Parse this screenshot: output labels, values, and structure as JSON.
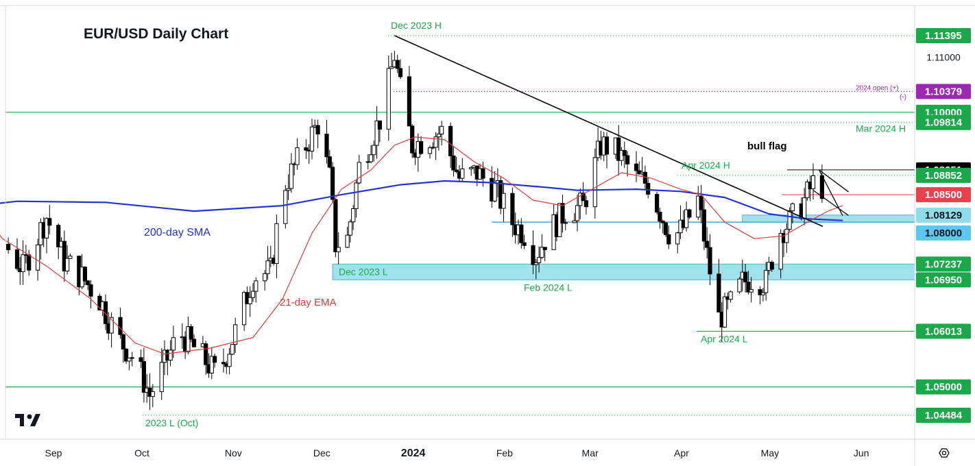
{
  "title": "EUR/USD Daily Chart",
  "colors": {
    "up": "#ffffff",
    "down": "#000000",
    "green": "#1aa84a",
    "zone_fill": "#8fdde8",
    "zone_stroke": "#4fb6d6",
    "sma": "#2233d6",
    "ema": "#e03a3a",
    "purple": "#9c27b0",
    "trend": "#000000",
    "axis_text": "#131722"
  },
  "chart_data": {
    "type": "candlestick",
    "title": "EUR/USD Daily Chart",
    "ylim": [
      1.0415,
      1.1185
    ],
    "x_ticks": [
      {
        "label": "Sep",
        "day": 0
      },
      {
        "label": "Oct",
        "day": 30
      },
      {
        "label": "Nov",
        "day": 61
      },
      {
        "label": "Dec",
        "day": 91
      },
      {
        "label": "2024",
        "day": 122
      },
      {
        "label": "Feb",
        "day": 153
      },
      {
        "label": "Mar",
        "day": 182
      },
      {
        "label": "Apr",
        "day": 213
      },
      {
        "label": "May",
        "day": 243
      },
      {
        "label": "Jun",
        "day": 274
      }
    ],
    "price_scale_labels": [
      "1.11000"
    ],
    "levels": [
      {
        "price": 1.11395,
        "label": "1.11395",
        "style": "dotted",
        "tag_fill": "#1aa84a",
        "tag_text": "#ffffff",
        "annotation": "Dec 2023 H"
      },
      {
        "price": 1.10379,
        "label": "1.10379",
        "style": "dotted-purple",
        "tag_fill": "#9c27b0",
        "tag_text": "#ffffff",
        "annotation": "2024 open (+)"
      },
      {
        "price": 1.1,
        "label": "1.10000",
        "style": "solid",
        "tag_fill": "#1aa84a",
        "tag_text": "#ffffff",
        "annotation": ""
      },
      {
        "price": 1.09814,
        "label": "1.09814",
        "style": "dotted",
        "tag_fill": "#1aa84a",
        "tag_text": "#ffffff",
        "annotation": "Mar 2024 H"
      },
      {
        "price": 1.08951,
        "label": "1.08951",
        "style": "none",
        "tag_fill": "#000000",
        "tag_text": "#ffffff",
        "annotation": ""
      },
      {
        "price": 1.08852,
        "label": "1.08852",
        "style": "dotted",
        "tag_fill": "#1aa84a",
        "tag_text": "#ffffff",
        "annotation": "Apr 2024 H"
      },
      {
        "price": 1.085,
        "label": "1.08500",
        "style": "solid-red",
        "tag_fill": "#e8414e",
        "tag_text": "#ffffff",
        "annotation": ""
      },
      {
        "price": 1.08129,
        "label": "1.08129",
        "style": "zone",
        "tag_fill": "#8fdde8",
        "tag_text": "#131722",
        "annotation": ""
      },
      {
        "price": 1.08,
        "label": "1.08000",
        "style": "zone",
        "tag_fill": "#5fc6ef",
        "tag_text": "#131722",
        "annotation": ""
      },
      {
        "price": 1.07237,
        "label": "1.07237",
        "style": "zone",
        "tag_fill": "#1aa84a",
        "tag_text": "#ffffff",
        "annotation": "Dec 2023 L"
      },
      {
        "price": 1.0695,
        "label": "1.06950",
        "style": "zone",
        "tag_fill": "#1aa84a",
        "tag_text": "#ffffff",
        "annotation": "Feb 2024 L"
      },
      {
        "price": 1.06013,
        "label": "1.06013",
        "style": "solid",
        "tag_fill": "#1aa84a",
        "tag_text": "#ffffff",
        "annotation": "Apr 2024 L"
      },
      {
        "price": 1.05,
        "label": "1.05000",
        "style": "solid",
        "tag_fill": "#1aa84a",
        "tag_text": "#ffffff",
        "annotation": ""
      },
      {
        "price": 1.04484,
        "label": "1.04484",
        "style": "dotted",
        "tag_fill": "#1aa84a",
        "tag_text": "#ffffff",
        "annotation": "2023 L (Oct)"
      }
    ],
    "annotations_extra": [
      {
        "text": "(-)",
        "color": "#9c27b0"
      },
      {
        "text": "bull flag",
        "color": "#000000"
      },
      {
        "text": "200-day SMA",
        "color": "#2233d6"
      },
      {
        "text": "21-day EMA",
        "color": "#e03a3a"
      }
    ],
    "key_points": [
      {
        "date": "2023-10-03",
        "day": 32,
        "value": 1.04484,
        "label": "2023 L (Oct)"
      },
      {
        "date": "2023-12-28",
        "day": 118,
        "value": 1.11395,
        "label": "Dec 2023 H"
      },
      {
        "date": "2023-12-08",
        "day": 98,
        "value": 1.07237,
        "label": "Dec 2023 L"
      },
      {
        "date": "2024-02-14",
        "day": 166,
        "value": 1.0695,
        "label": "Feb 2024 L"
      },
      {
        "date": "2024-03-08",
        "day": 189,
        "value": 1.09814,
        "label": "Mar 2024 H"
      },
      {
        "date": "2024-04-09",
        "day": 221,
        "value": 1.08852,
        "label": "Apr 2024 H"
      },
      {
        "date": "2024-04-16",
        "day": 228,
        "value": 1.06013,
        "label": "Apr 2024 L"
      }
    ],
    "series": [
      {
        "name": "EUR/USD",
        "close_path": [
          [
            -44,
            1.0905
          ],
          [
            -38,
            1.0938
          ],
          [
            -30,
            1.088
          ],
          [
            -22,
            1.084
          ],
          [
            -14,
            1.076
          ],
          [
            -8,
            1.0715
          ],
          [
            0,
            1.081
          ],
          [
            6,
            1.073
          ],
          [
            12,
            1.07
          ],
          [
            18,
            1.066
          ],
          [
            24,
            1.059
          ],
          [
            30,
            1.055
          ],
          [
            35,
            1.0485
          ],
          [
            40,
            1.054
          ],
          [
            45,
            1.06
          ],
          [
            52,
            1.056
          ],
          [
            58,
            1.052
          ],
          [
            64,
            1.06
          ],
          [
            70,
            1.07
          ],
          [
            76,
            1.071
          ],
          [
            80,
            1.086
          ],
          [
            86,
            1.092
          ],
          [
            92,
            1.098
          ],
          [
            96,
            1.088
          ],
          [
            98,
            1.076
          ],
          [
            102,
            1.077
          ],
          [
            106,
            1.09
          ],
          [
            110,
            1.095
          ],
          [
            114,
            1.1
          ],
          [
            118,
            1.1105
          ],
          [
            120,
            1.104
          ],
          [
            124,
            1.094
          ],
          [
            128,
            1.095
          ],
          [
            134,
            1.0965
          ],
          [
            140,
            1.088
          ],
          [
            146,
            1.089
          ],
          [
            152,
            1.086
          ],
          [
            158,
            1.08
          ],
          [
            162,
            1.078
          ],
          [
            166,
            1.074
          ],
          [
            170,
            1.078
          ],
          [
            176,
            1.082
          ],
          [
            182,
            1.083
          ],
          [
            188,
            1.094
          ],
          [
            192,
            1.0935
          ],
          [
            196,
            1.091
          ],
          [
            200,
            1.088
          ],
          [
            204,
            1.087
          ],
          [
            208,
            1.082
          ],
          [
            212,
            1.077
          ],
          [
            216,
            1.079
          ],
          [
            221,
            1.084
          ],
          [
            224,
            1.074
          ],
          [
            228,
            1.0625
          ],
          [
            232,
            1.065
          ],
          [
            236,
            1.069
          ],
          [
            240,
            1.07
          ],
          [
            244,
            1.069
          ],
          [
            248,
            1.078
          ],
          [
            252,
            1.08
          ],
          [
            256,
            1.083
          ],
          [
            260,
            1.087
          ],
          [
            263,
            1.0865
          ],
          [
            266,
            1.085
          ],
          [
            268,
            1.084
          ],
          [
            270,
            1.083
          ]
        ]
      },
      {
        "name": "200-day SMA",
        "points": [
          [
            -44,
            1.079
          ],
          [
            -30,
            1.0826
          ],
          [
            -10,
            1.0838
          ],
          [
            20,
            1.0836
          ],
          [
            50,
            1.082
          ],
          [
            80,
            1.083
          ],
          [
            100,
            1.085
          ],
          [
            120,
            1.0868
          ],
          [
            135,
            1.0875
          ],
          [
            150,
            1.0872
          ],
          [
            170,
            1.0863
          ],
          [
            180,
            1.0858
          ],
          [
            200,
            1.086
          ],
          [
            215,
            1.0856
          ],
          [
            230,
            1.0845
          ],
          [
            245,
            1.0815
          ],
          [
            258,
            1.0806
          ],
          [
            270,
            1.0803
          ]
        ]
      },
      {
        "name": "21-day EMA",
        "points": [
          [
            -44,
            1.095
          ],
          [
            -30,
            1.088
          ],
          [
            -15,
            1.077
          ],
          [
            0,
            1.072
          ],
          [
            15,
            1.066
          ],
          [
            30,
            1.058
          ],
          [
            40,
            1.056
          ],
          [
            55,
            1.057
          ],
          [
            70,
            1.059
          ],
          [
            80,
            1.066
          ],
          [
            90,
            1.078
          ],
          [
            100,
            1.086
          ],
          [
            110,
            1.0895
          ],
          [
            118,
            1.094
          ],
          [
            125,
            1.0955
          ],
          [
            135,
            1.095
          ],
          [
            145,
            1.091
          ],
          [
            155,
            1.088
          ],
          [
            165,
            1.084
          ],
          [
            175,
            1.083
          ],
          [
            185,
            1.086
          ],
          [
            195,
            1.089
          ],
          [
            205,
            1.088
          ],
          [
            215,
            1.086
          ],
          [
            222,
            1.085
          ],
          [
            230,
            1.08
          ],
          [
            240,
            1.077
          ],
          [
            250,
            1.0775
          ],
          [
            258,
            1.08
          ],
          [
            265,
            1.082
          ],
          [
            270,
            1.083
          ]
        ]
      }
    ],
    "trendlines": [
      {
        "name": "downtrend",
        "points": [
          [
            118,
            1.11395
          ],
          [
            260,
            1.08
          ]
        ]
      },
      {
        "name": "bull-flag-upper",
        "points": [
          [
            262,
            1.0895
          ],
          [
            272,
            1.0855
          ]
        ]
      },
      {
        "name": "bull-flag-lower",
        "points": [
          [
            260,
            1.0858
          ],
          [
            272,
            1.0812
          ]
        ]
      },
      {
        "name": "pole",
        "points": [
          [
            262,
            1.0895
          ],
          [
            270,
            1.0812
          ]
        ]
      }
    ],
    "zones": [
      {
        "name": "support-zone-upper",
        "from_day": 236,
        "low": 1.08,
        "high": 1.08129
      },
      {
        "name": "support-zone-lower",
        "from_day": 97,
        "low": 1.0695,
        "high": 1.07237
      }
    ],
    "grid": false,
    "legend": "none"
  }
}
